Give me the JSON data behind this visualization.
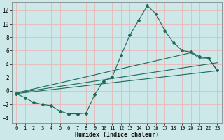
{
  "xlabel": "Humidex (Indice chaleur)",
  "background_color": "#cce8e8",
  "grid_color": "#e8b8b8",
  "line_color": "#1a6b5a",
  "xlim": [
    -0.5,
    23.5
  ],
  "ylim": [
    -4.8,
    13.2
  ],
  "xticks": [
    0,
    1,
    2,
    3,
    4,
    5,
    6,
    7,
    8,
    9,
    10,
    11,
    12,
    13,
    14,
    15,
    16,
    17,
    18,
    19,
    20,
    21,
    22,
    23
  ],
  "yticks": [
    -4,
    -2,
    0,
    2,
    4,
    6,
    8,
    10,
    12
  ],
  "curve1_x": [
    0,
    1,
    2,
    3,
    4,
    5,
    6,
    7,
    8,
    9,
    10,
    11,
    12,
    13,
    14,
    15,
    16,
    17,
    18,
    19,
    20,
    21,
    22,
    23
  ],
  "curve1_y": [
    -0.4,
    -1.0,
    -1.7,
    -2.0,
    -2.2,
    -3.0,
    -3.4,
    -3.4,
    -3.3,
    -0.5,
    1.5,
    2.1,
    5.3,
    8.3,
    10.5,
    12.7,
    11.5,
    9.0,
    7.2,
    6.0,
    5.8,
    5.1,
    4.9,
    3.1
  ],
  "line1_x": [
    0,
    23
  ],
  "line1_y": [
    -0.4,
    3.0
  ],
  "line2_x": [
    0,
    23
  ],
  "line2_y": [
    -0.3,
    4.2
  ],
  "line3_x": [
    0,
    20,
    21,
    22,
    23
  ],
  "line3_y": [
    -0.3,
    5.7,
    4.9,
    4.9,
    3.0
  ]
}
